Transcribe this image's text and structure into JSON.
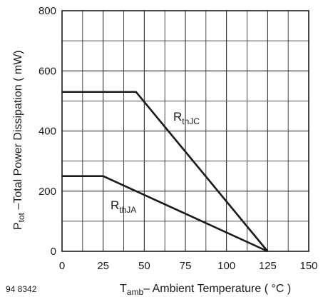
{
  "chart_data": {
    "type": "line",
    "xlabel": {
      "main": "T",
      "sub": "amb",
      "rest": "– Ambient Temperature ( °C )"
    },
    "ylabel": {
      "main": "P",
      "sub": "tot",
      "rest": " –Total Power Dissipation ( mW)"
    },
    "xlim": [
      0,
      150
    ],
    "ylim": [
      0,
      800
    ],
    "x_ticks": [
      0,
      25,
      50,
      75,
      100,
      125,
      150
    ],
    "y_ticks": [
      0,
      200,
      400,
      600,
      800
    ],
    "x_tick_labels": [
      "0",
      "25",
      "50",
      "75",
      "100",
      "125",
      "150"
    ],
    "y_tick_labels": [
      "0",
      "200",
      "400",
      "600",
      "800"
    ],
    "grid": true,
    "series": [
      {
        "name": {
          "main": "R",
          "sub": "thJC"
        },
        "x": [
          0,
          45,
          125
        ],
        "y": [
          530,
          530,
          0
        ],
        "color": "#1a1a1a"
      },
      {
        "name": {
          "main": "R",
          "sub": "thJA"
        },
        "x": [
          0,
          25,
          125
        ],
        "y": [
          250,
          250,
          0
        ],
        "color": "#1a1a1a"
      }
    ],
    "figure_code": "94 8342"
  }
}
